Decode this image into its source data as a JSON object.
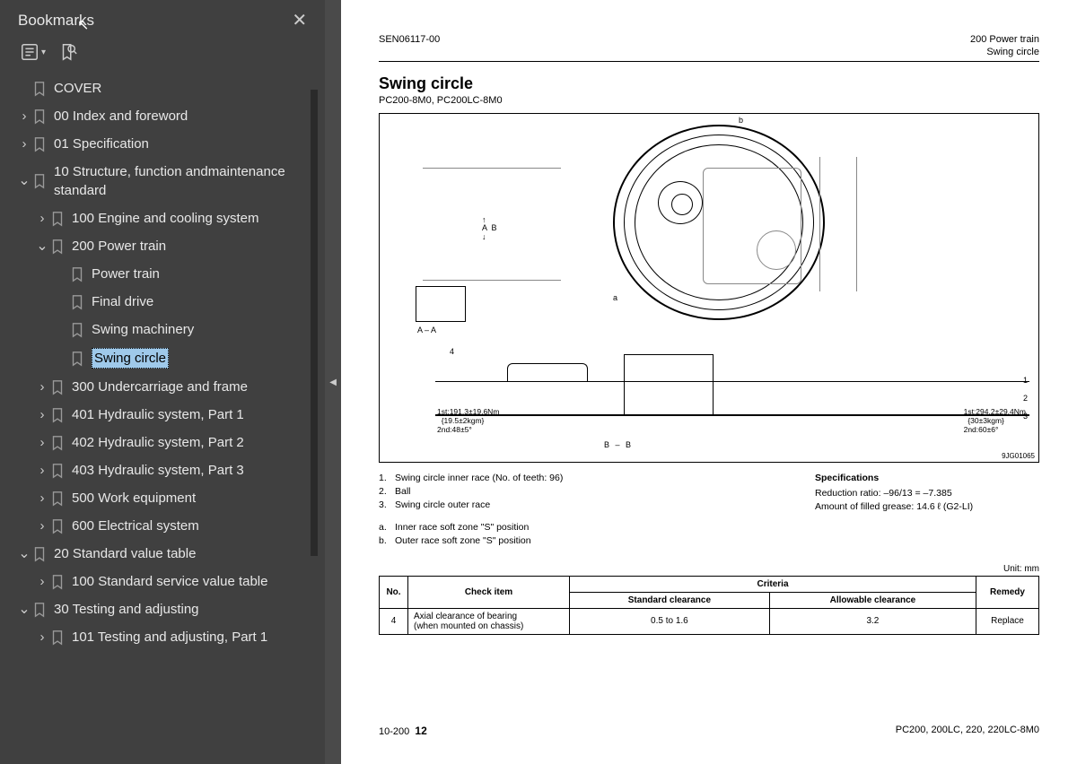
{
  "sidebar": {
    "title": "Bookmarks",
    "items": [
      {
        "depth": 0,
        "chev": "",
        "label": "COVER"
      },
      {
        "depth": 0,
        "chev": ">",
        "label": "00 Index and foreword"
      },
      {
        "depth": 0,
        "chev": ">",
        "label": "01 Specification"
      },
      {
        "depth": 0,
        "chev": "v",
        "label": "10 Structure, function andmaintenance standard"
      },
      {
        "depth": 1,
        "chev": ">",
        "label": "100 Engine and cooling system"
      },
      {
        "depth": 1,
        "chev": "v",
        "label": "200 Power train"
      },
      {
        "depth": 2,
        "chev": "",
        "label": "Power train"
      },
      {
        "depth": 2,
        "chev": "",
        "label": "Final drive"
      },
      {
        "depth": 2,
        "chev": "",
        "label": "Swing machinery"
      },
      {
        "depth": 2,
        "chev": "",
        "label": "Swing circle",
        "selected": true
      },
      {
        "depth": 1,
        "chev": ">",
        "label": "300 Undercarriage and frame"
      },
      {
        "depth": 1,
        "chev": ">",
        "label": "401 Hydraulic system, Part 1"
      },
      {
        "depth": 1,
        "chev": ">",
        "label": "402 Hydraulic system, Part 2"
      },
      {
        "depth": 1,
        "chev": ">",
        "label": "403 Hydraulic system, Part 3"
      },
      {
        "depth": 1,
        "chev": ">",
        "label": "500 Work equipment"
      },
      {
        "depth": 1,
        "chev": ">",
        "label": "600 Electrical system"
      },
      {
        "depth": 0,
        "chev": "v",
        "label": "20 Standard value table"
      },
      {
        "depth": 1,
        "chev": ">",
        "label": "100 Standard service value table"
      },
      {
        "depth": 0,
        "chev": "v",
        "label": "30 Testing and adjusting"
      },
      {
        "depth": 1,
        "chev": ">",
        "label": "101 Testing and adjusting, Part 1"
      }
    ]
  },
  "doc": {
    "header_left": "SEN06117-00",
    "header_right_1": "200 Power train",
    "header_right_2": "Swing circle",
    "title": "Swing circle",
    "subtitle": "PC200-8M0, PC200LC-8M0",
    "fig_id": "9JG01065",
    "fig": {
      "b": "b",
      "a": "a",
      "arrA": "↑\nA  B\n↓",
      "AA": "A – A",
      "BB": "B – B",
      "torqueL": "1st:191.3±19.6Nm\n  {19.5±2kgm}\n2nd:48±5°",
      "torqueR": "1st:294.2±29.4Nm\n  {30±3kgm}\n2nd:60±6°",
      "n1": "1",
      "n2": "2",
      "n3": "3",
      "n4": "4"
    },
    "legend": {
      "l1": "Swing circle inner race (No. of teeth: 96)",
      "l2": "Ball",
      "l3": "Swing circle outer race"
    },
    "specs": {
      "h": "Specifications",
      "s1": "Reduction ratio:  –96/13 = –7.385",
      "s2": "Amount of filled grease:  14.6 ℓ (G2-LI)"
    },
    "soft": {
      "a": "Inner race soft zone \"S\" position",
      "b": "Outer race soft zone \"S\" position"
    },
    "unit": "Unit: mm",
    "table": {
      "no": "No.",
      "check": "Check item",
      "criteria": "Criteria",
      "remedy": "Remedy",
      "std": "Standard clearance",
      "allow": "Allowable clearance",
      "rno": "4",
      "rchk": "Axial clearance of bearing\n(when mounted on chassis)",
      "rstd": "0.5 to 1.6",
      "rallow": "3.2",
      "rrem": "Replace"
    },
    "footer": {
      "sec": "10-200",
      "pg": "12",
      "models": "PC200, 200LC, 220, 220LC-8M0"
    }
  }
}
